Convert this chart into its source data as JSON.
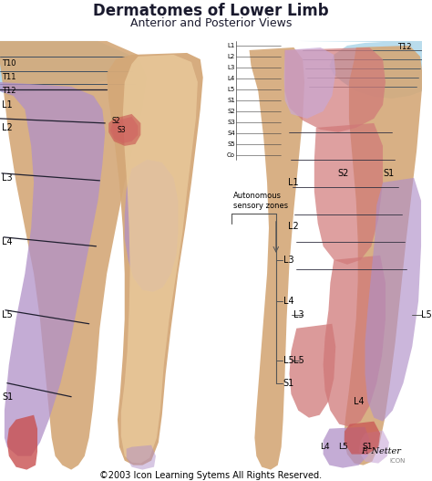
{
  "title_line1": "Dermatomes of Lower Limb",
  "title_line2": "Anterior and Posterior Views",
  "copyright": "©2003 Icon Learning Sytems All Rights Reserved.",
  "bg_color": "#ffffff",
  "skin_light": "#e8c89a",
  "skin_mid": "#d4a878",
  "blue_color": "#a8d4e8",
  "purple_color": "#b090c8",
  "purple_light": "#c8a8d8",
  "red_color": "#c85050",
  "pink_red": "#d07878",
  "pink_light": "#e8a0a0",
  "title_fontsize": 12,
  "subtitle_fontsize": 9,
  "copyright_fontsize": 7
}
